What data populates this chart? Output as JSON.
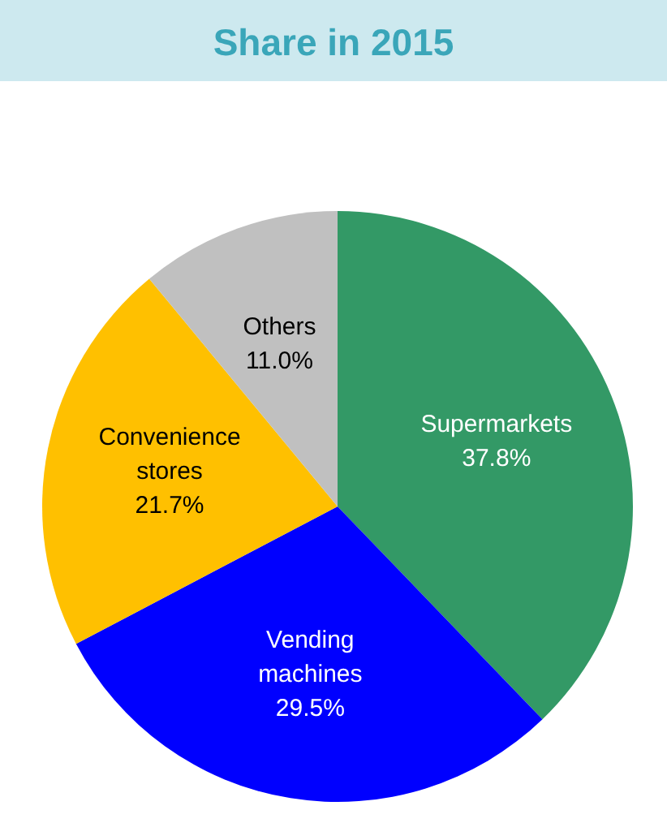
{
  "chart_data": {
    "type": "pie",
    "title": "Share in 2015",
    "categories": [
      "Supermarkets",
      "Vending machines",
      "Convenience stores",
      "Others"
    ],
    "values": [
      37.8,
      29.5,
      21.7,
      11.0
    ],
    "colors": [
      "#339966",
      "#0000ff",
      "#ffc000",
      "#c0c0c0"
    ],
    "value_labels": [
      "37.8%",
      "29.5%",
      "21.7%",
      "11.0%"
    ]
  }
}
